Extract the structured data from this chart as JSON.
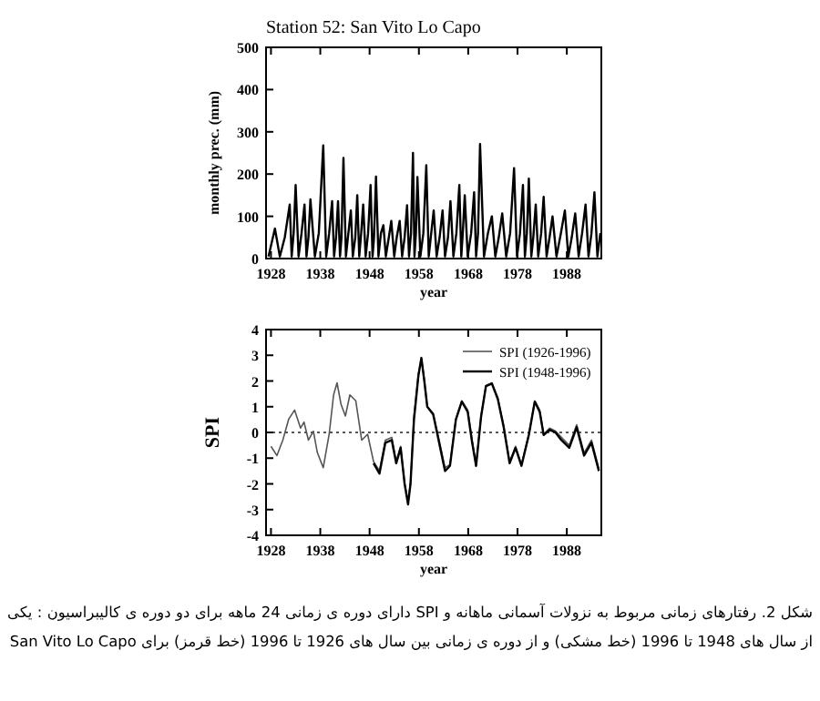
{
  "chart_data": [
    {
      "type": "line",
      "title": "Station 52: San Vito Lo Capo",
      "xlabel": "year",
      "ylabel": "monthly prec. (mm)",
      "xlim": [
        1927,
        1995
      ],
      "xticks": [
        1928,
        1938,
        1948,
        1958,
        1968,
        1978,
        1988
      ],
      "ylim": [
        0,
        500
      ],
      "yticks": [
        0,
        100,
        200,
        300,
        400,
        500
      ],
      "grid": false,
      "legend": false,
      "series": [
        {
          "color": "#000000",
          "x": [
            1927.5,
            1928.8,
            1929.8,
            1930.8,
            1931.8,
            1932.2,
            1932.6,
            1933,
            1933.6,
            1934.2,
            1934.8,
            1935.2,
            1935.6,
            1936,
            1936.9,
            1937.7,
            1938.6,
            1939.2,
            1939.8,
            1940.4,
            1940.8,
            1941.2,
            1941.6,
            1942.0,
            1942.3,
            1942.7,
            1943.2,
            1943.7,
            1944.2,
            1944.6,
            1945.1,
            1945.5,
            1945.9,
            1946.3,
            1946.7,
            1947.2,
            1947.7,
            1948.2,
            1948.6,
            1948.9,
            1949.3,
            1949.8,
            1950.3,
            1950.8,
            1951.3,
            1951.9,
            1952.4,
            1953,
            1953.5,
            1954.1,
            1954.6,
            1955.1,
            1955.6,
            1956,
            1956.4,
            1956.8,
            1957.1,
            1957.4,
            1957.7,
            1958.3,
            1958.9,
            1959.5,
            1960,
            1960.5,
            1961,
            1961.6,
            1962.2,
            1962.8,
            1963.3,
            1963.9,
            1964.4,
            1965,
            1965.6,
            1966.2,
            1966.6,
            1966.9,
            1967.3,
            1967.9,
            1968.6,
            1969.2,
            1969.6,
            1970,
            1970.4,
            1971.2,
            1972,
            1972.8,
            1973.5,
            1974.2,
            1974.9,
            1975.7,
            1976.5,
            1977.3,
            1977.9,
            1978.5,
            1979.1,
            1979.5,
            1979.9,
            1980.3,
            1980.8,
            1981.2,
            1981.7,
            1982.2,
            1982.8,
            1983.3,
            1983.9,
            1984.5,
            1985.1,
            1985.9,
            1986.8,
            1987.6,
            1988.3,
            1989,
            1989.7,
            1990.4,
            1991.1,
            1991.8,
            1992.4,
            1993,
            1993.6,
            1994.2,
            1994.8
          ],
          "values": [
            5,
            71,
            5,
            50,
            128,
            5,
            60,
            174,
            5,
            60,
            128,
            5,
            50,
            140,
            5,
            60,
            268,
            5,
            60,
            136,
            5,
            50,
            136,
            5,
            50,
            238,
            5,
            60,
            114,
            5,
            50,
            150,
            5,
            60,
            128,
            5,
            60,
            174,
            5,
            50,
            194,
            5,
            60,
            79,
            5,
            50,
            89,
            5,
            50,
            89,
            5,
            50,
            126,
            5,
            60,
            250,
            5,
            60,
            193,
            5,
            60,
            221,
            5,
            60,
            114,
            5,
            50,
            114,
            5,
            50,
            136,
            5,
            60,
            174,
            5,
            60,
            150,
            5,
            60,
            157,
            5,
            60,
            271,
            5,
            60,
            100,
            5,
            50,
            107,
            5,
            60,
            214,
            5,
            60,
            174,
            5,
            60,
            189,
            5,
            50,
            128,
            5,
            60,
            146,
            5,
            50,
            100,
            5,
            60,
            114,
            5,
            50,
            107,
            5,
            60,
            128,
            5,
            60,
            157,
            5,
            60
          ]
        }
      ]
    },
    {
      "type": "line",
      "xlabel": "year",
      "ylabel": "SPI",
      "xlim": [
        1927,
        1995
      ],
      "xticks": [
        1928,
        1938,
        1948,
        1958,
        1968,
        1978,
        1988
      ],
      "ylim": [
        -4,
        4
      ],
      "yticks": [
        -4,
        -3,
        -2,
        -1,
        0,
        1,
        2,
        3,
        4
      ],
      "grid": false,
      "legend": "top right",
      "ref_lines": [
        {
          "axis": "y",
          "value": 0,
          "line_style": "dotted",
          "color": "#555555"
        }
      ],
      "series": [
        {
          "name": "SPI (1926-1996)",
          "color": "#555555",
          "x": [
            1928.0,
            1929.2,
            1930.4,
            1931.6,
            1932.8,
            1934.0,
            1934.7,
            1935.6,
            1936.6,
            1937.4,
            1938.6,
            1939.8,
            1940.7,
            1941.4,
            1942.2,
            1943.1,
            1944.0,
            1945.2,
            1946.4,
            1947.6,
            1948.8,
            1950.0,
            1951.2,
            1952.5,
            1953.4,
            1954.3,
            1955.1,
            1955.8,
            1956.3,
            1957.0,
            1957.9,
            1958.5,
            1959.1,
            1959.7,
            1960.9,
            1962.1,
            1963.3,
            1964.3,
            1965.5,
            1966.7,
            1967.9,
            1968.8,
            1969.6,
            1970.6,
            1971.6,
            1972.8,
            1974.0,
            1975.2,
            1976.4,
            1977.6,
            1978.8,
            1980.3,
            1981.5,
            1982.5,
            1983.3,
            1984.5,
            1985.7,
            1986.9,
            1988.5,
            1990,
            1991.5,
            1993,
            1994.5
          ],
          "values": [
            -0.54,
            -0.9,
            -0.3,
            0.52,
            0.87,
            0.17,
            0.4,
            -0.3,
            0.05,
            -0.78,
            -1.37,
            -0.07,
            1.46,
            1.93,
            1.1,
            0.64,
            1.46,
            1.23,
            -0.3,
            -0.07,
            -1.13,
            -1.49,
            -0.3,
            -0.19,
            -1.13,
            -0.54,
            -1.96,
            -2.67,
            -1.96,
            0.64,
            2.29,
            2.88,
            2.05,
            0.99,
            0.75,
            -0.3,
            -1.37,
            -1.25,
            0.52,
            1.23,
            0.87,
            -0.3,
            -1.25,
            0.64,
            1.82,
            1.93,
            1.34,
            0.28,
            -1.13,
            -0.54,
            -1.25,
            -0.07,
            1.23,
            0.87,
            -0.07,
            0.17,
            0.05,
            -0.19,
            -0.5,
            0.3,
            -0.8,
            -0.3,
            -1.4
          ]
        },
        {
          "name": "SPI (1948-1996)",
          "color": "#000000",
          "x": [
            1948.8,
            1950.0,
            1951.2,
            1952.5,
            1953.4,
            1954.3,
            1955.1,
            1955.8,
            1956.3,
            1957.0,
            1957.9,
            1958.5,
            1959.1,
            1959.7,
            1960.9,
            1962.1,
            1963.3,
            1964.3,
            1965.5,
            1966.7,
            1967.9,
            1968.8,
            1969.6,
            1970.6,
            1971.6,
            1972.8,
            1974.0,
            1975.2,
            1976.4,
            1977.6,
            1978.8,
            1980.3,
            1981.5,
            1982.5,
            1983.3,
            1984.5,
            1985.7,
            1986.9,
            1988.5,
            1990,
            1991.5,
            1993,
            1994.5
          ],
          "values": [
            -1.2,
            -1.6,
            -0.4,
            -0.3,
            -1.2,
            -0.6,
            -2.0,
            -2.8,
            -2.0,
            0.5,
            2.2,
            2.9,
            2.0,
            1.0,
            0.7,
            -0.4,
            -1.5,
            -1.3,
            0.5,
            1.2,
            0.8,
            -0.4,
            -1.3,
            0.6,
            1.8,
            1.9,
            1.3,
            0.2,
            -1.2,
            -0.6,
            -1.3,
            -0.1,
            1.2,
            0.8,
            -0.1,
            0.1,
            0.0,
            -0.3,
            -0.6,
            0.2,
            -0.9,
            -0.4,
            -1.5
          ]
        }
      ],
      "annotations": [
        "شکل 2. رفتارهای زمانی مربوط به نزولات آسمانی ماهانه و SPI دارای دوره ی زمانی 24 ماهه برای دو دوره ی کالیبراسیون : یکی از سال های 1948 تا 1996 (خط مشکی) و از دوره ی زمانی بین سال های 1926 تا 1996 (خط قرمز) برای San Vito Lo Capo"
      ]
    }
  ]
}
